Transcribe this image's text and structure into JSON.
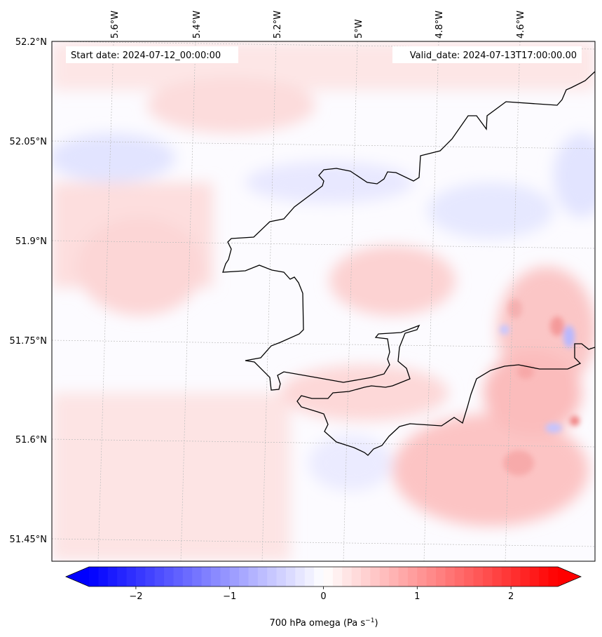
{
  "map": {
    "start_date": "Start date: 2024-07-12_00:00:00",
    "valid_date": "Valid_date: 2024-07-13T17:00:00.00",
    "lon_labels": [
      "5.6°W",
      "5.4°W",
      "5.2°W",
      "5°W",
      "4.8°W",
      "4.6°W"
    ],
    "lat_labels": [
      "52.2°N",
      "52.05°N",
      "51.9°N",
      "51.75°N",
      "51.6°N",
      "51.45°N"
    ]
  },
  "colorbar": {
    "label": "700 hPa omega (Pa s",
    "label_sup": "−1",
    "label_end": ")",
    "ticks": [
      "−2",
      "−1",
      "0",
      "1",
      "2"
    ],
    "range": [
      -2.5,
      2.5
    ],
    "colormap": "bwr",
    "colors": {
      "negative": "#0000ff",
      "zero": "#ffffff",
      "positive": "#ff0000"
    }
  }
}
